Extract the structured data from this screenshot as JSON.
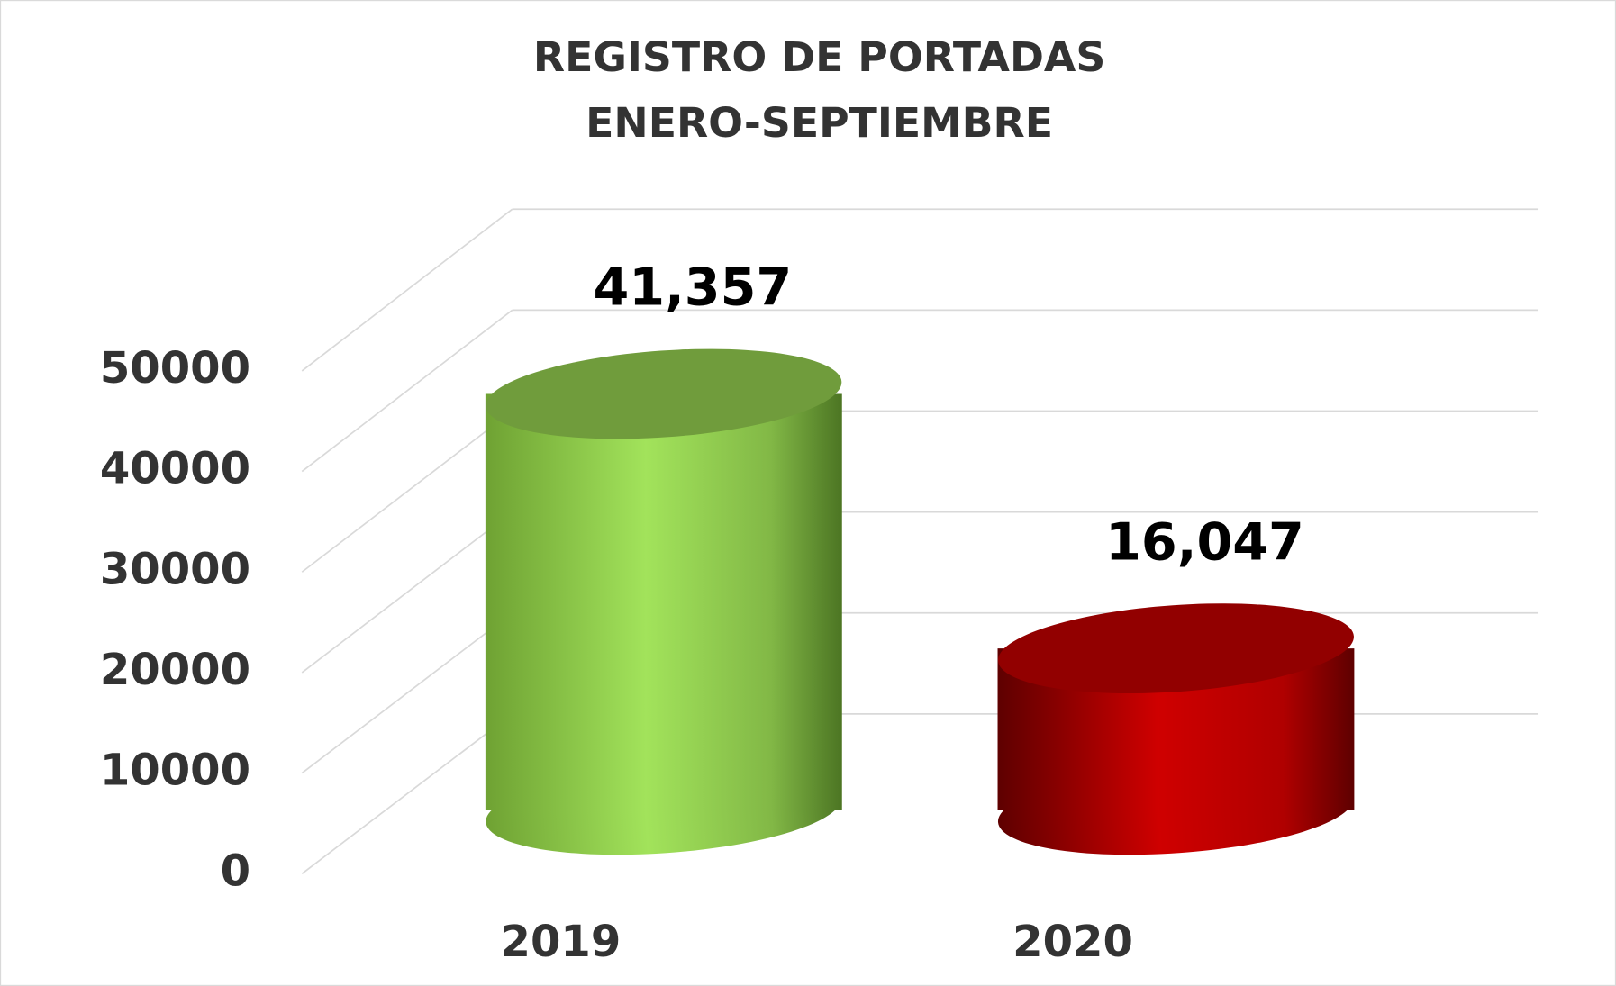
{
  "chart_data": {
    "type": "bar3d",
    "title": "REGISTRO DE PORTADAS",
    "subtitle": "ENERO-SEPTIEMBRE",
    "categories": [
      "2019",
      "2020"
    ],
    "values": [
      41357,
      16047
    ],
    "value_labels": [
      "41,357",
      "16,047"
    ],
    "colors": [
      "#8cc63f",
      "#c00000"
    ],
    "ylim": [
      0,
      50000
    ],
    "yticks": [
      0,
      10000,
      20000,
      30000,
      40000,
      50000
    ],
    "grid": true
  }
}
